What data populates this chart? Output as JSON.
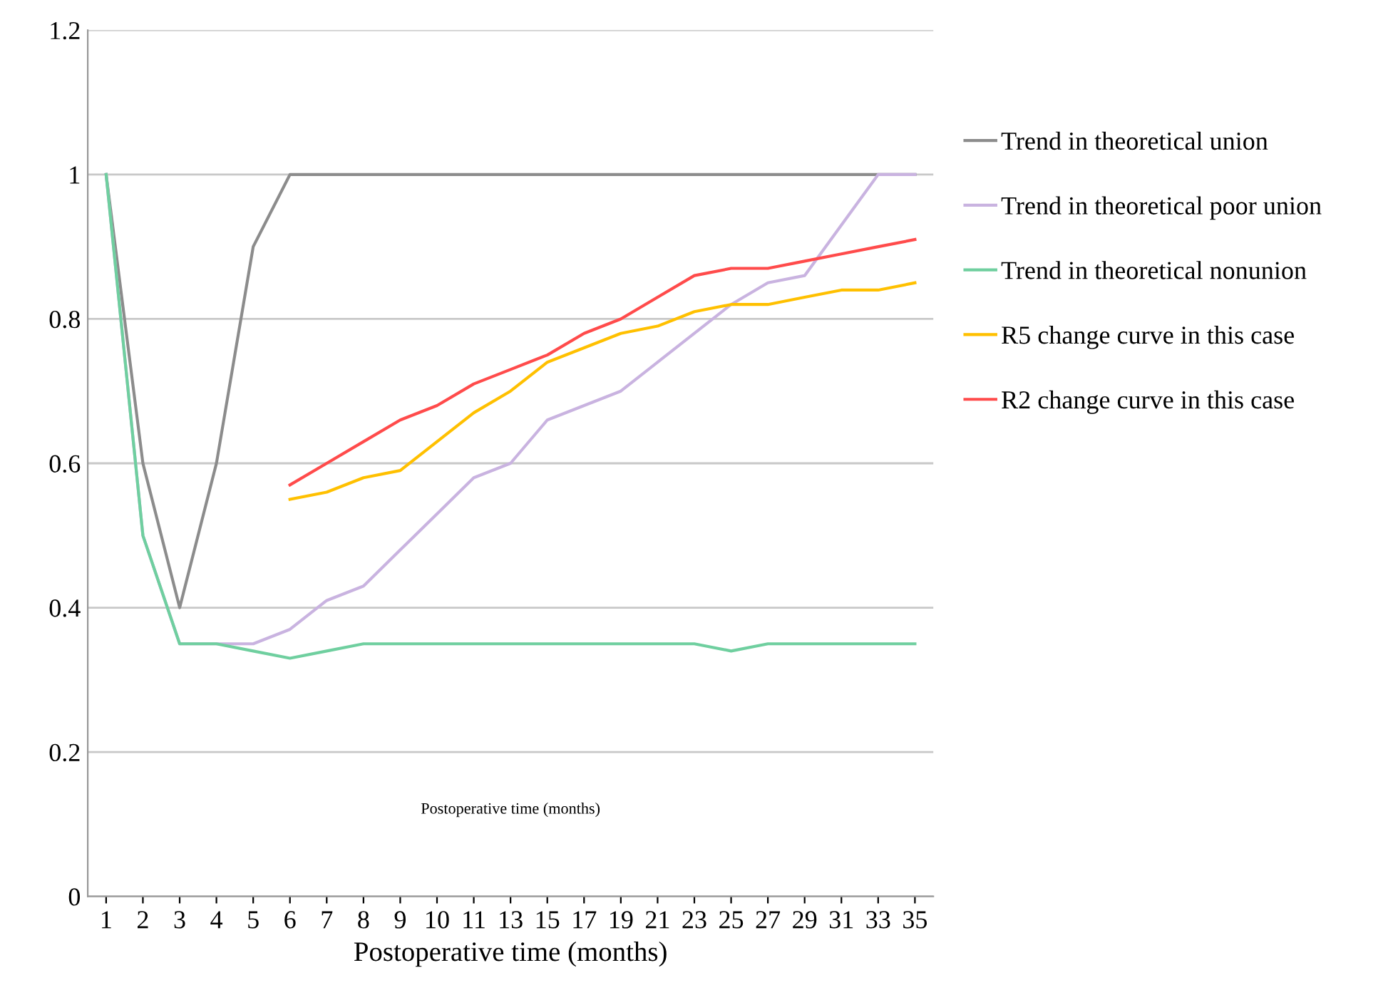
{
  "chart_data": {
    "type": "line",
    "xlabel": "Postoperative time (months)",
    "categories": [
      "1",
      "2",
      "3",
      "4",
      "5",
      "6",
      "7",
      "8",
      "9",
      "10",
      "11",
      "13",
      "15",
      "17",
      "19",
      "21",
      "23",
      "25",
      "27",
      "29",
      "31",
      "33",
      "35"
    ],
    "ylim": [
      0,
      1.2
    ],
    "yticks": [
      0,
      0.2,
      0.4,
      0.6,
      0.8,
      1,
      1.2
    ],
    "grid": "y",
    "legend": "right",
    "marker": "none",
    "line_style": "solid",
    "annotations": [
      "Postoperative time (months)"
    ],
    "series": [
      {
        "name": "Trend in theoretical union",
        "color": "#8c8c8c",
        "values": [
          1,
          0.6,
          0.4,
          0.6,
          0.9,
          1,
          1,
          1,
          1,
          1,
          1,
          1,
          1,
          1,
          1,
          1,
          1,
          1,
          1,
          1,
          1,
          1,
          1
        ]
      },
      {
        "name": "Trend in theoretical poor union",
        "color": "#c9b3e0",
        "values": [
          1,
          0.5,
          0.35,
          0.35,
          0.35,
          0.37,
          0.41,
          0.43,
          0.48,
          0.53,
          0.58,
          0.6,
          0.66,
          0.68,
          0.7,
          0.74,
          0.78,
          0.82,
          0.85,
          0.86,
          0.93,
          1,
          1
        ]
      },
      {
        "name": "Trend in theoretical nonunion",
        "color": "#6fcf9f",
        "values": [
          1,
          0.5,
          0.35,
          0.35,
          0.34,
          0.33,
          0.34,
          0.35,
          0.35,
          0.35,
          0.35,
          0.35,
          0.35,
          0.35,
          0.35,
          0.35,
          0.35,
          0.34,
          0.35,
          0.35,
          0.35,
          0.35,
          0.35
        ]
      },
      {
        "name": "R5 change curve in this case",
        "color": "#ffc000",
        "values": [
          null,
          null,
          null,
          null,
          null,
          0.55,
          0.56,
          0.58,
          0.59,
          0.63,
          0.67,
          0.7,
          0.74,
          0.76,
          0.78,
          0.79,
          0.81,
          0.82,
          0.82,
          0.83,
          0.84,
          0.84,
          0.85
        ]
      },
      {
        "name": "R2 change curve in this case",
        "color": "#ff4b4b",
        "values": [
          null,
          null,
          null,
          null,
          null,
          0.57,
          0.6,
          0.63,
          0.66,
          0.68,
          0.71,
          0.73,
          0.75,
          0.78,
          0.8,
          0.83,
          0.86,
          0.87,
          0.87,
          0.88,
          0.89,
          0.9,
          0.91
        ]
      }
    ]
  }
}
